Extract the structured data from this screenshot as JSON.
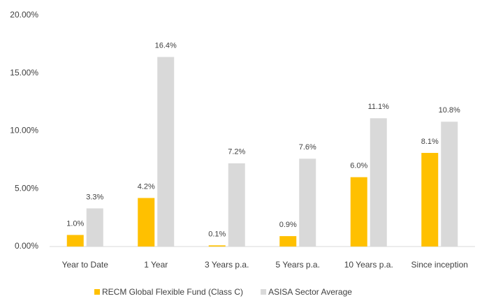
{
  "chart_data": {
    "type": "bar",
    "categories": [
      "Year to Date",
      "1 Year",
      "3 Years p.a.",
      "5 Years p.a.",
      "10 Years p.a.",
      "Since inception"
    ],
    "series": [
      {
        "name": "RECM Global Flexible Fund (Class C)",
        "color": "#ffc000",
        "values": [
          1.0,
          4.2,
          0.1,
          0.9,
          6.0,
          8.1
        ],
        "value_labels": [
          "1.0%",
          "4.2%",
          "0.1%",
          "0.9%",
          "6.0%",
          "8.1%"
        ]
      },
      {
        "name": "ASISA Sector Average",
        "color": "#d9d9d9",
        "values": [
          3.3,
          16.4,
          7.2,
          7.6,
          11.1,
          10.8
        ],
        "value_labels": [
          "3.3%",
          "16.4%",
          "7.2%",
          "7.6%",
          "11.1%",
          "10.8%"
        ]
      }
    ],
    "ylim": [
      0,
      20
    ],
    "yticks": [
      {
        "value": 0,
        "label": "0.00%"
      },
      {
        "value": 5,
        "label": "5.00%"
      },
      {
        "value": 10,
        "label": "10.00%"
      },
      {
        "value": 15,
        "label": "15.00%"
      },
      {
        "value": 20,
        "label": "20.00%"
      }
    ],
    "grid": false,
    "legend": "bottom"
  }
}
